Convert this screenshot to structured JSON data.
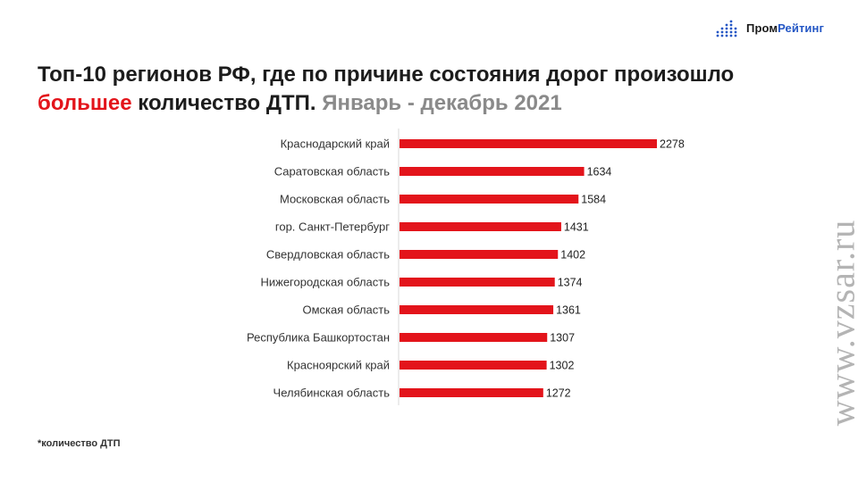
{
  "brand": {
    "name_part1": "Пром",
    "name_part2": "Рейтинг"
  },
  "title": {
    "part1": "Топ-10 регионов РФ, где по причине состояния дорог произошло ",
    "accent": "большее",
    "part2": " количество ДТП. ",
    "period": "Январь - декабрь 2021"
  },
  "chart_data": {
    "type": "bar",
    "orientation": "horizontal",
    "categories": [
      "Краснодарский край",
      "Саратовская область",
      "Московская область",
      "гор. Санкт-Петербург",
      "Свердловская область",
      "Нижегородская область",
      "Омская область",
      "Республика Башкортостан",
      "Красноярский край",
      "Челябинская область"
    ],
    "values": [
      2278,
      1634,
      1584,
      1431,
      1402,
      1374,
      1361,
      1307,
      1302,
      1272
    ],
    "bar_color": "#e3141b",
    "grid": false,
    "xlim": [
      0,
      2278
    ]
  },
  "footnote": "*количество ДТП",
  "watermark": "www.vzsar.ru",
  "colors": {
    "accent": "#e3141b",
    "brand_blue": "#2457c5",
    "period_gray": "#8a8a8a"
  }
}
